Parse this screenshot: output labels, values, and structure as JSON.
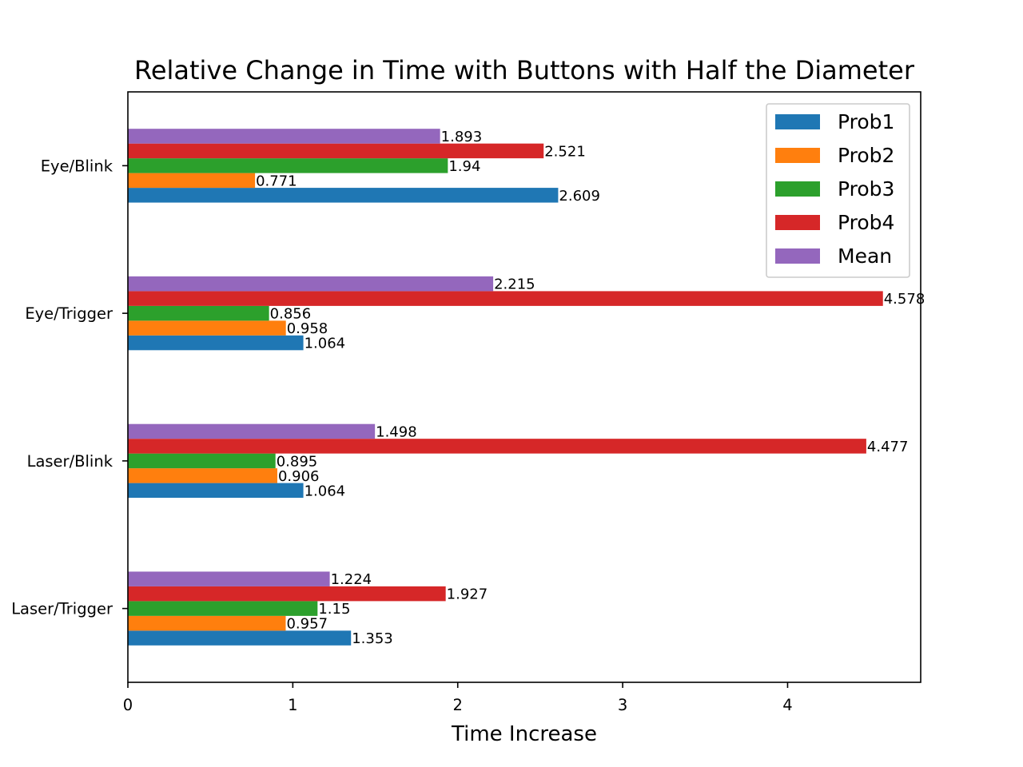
{
  "chart_data": {
    "type": "bar",
    "orientation": "horizontal",
    "title": "Relative Change in Time with Buttons with Half the Diameter",
    "xlabel": "Time Increase",
    "ylabel": "",
    "categories": [
      "Laser/Trigger",
      "Laser/Blink",
      "Eye/Trigger",
      "Eye/Blink"
    ],
    "series": [
      {
        "name": "Prob1",
        "color": "#1f77b4",
        "values": [
          1.353,
          1.064,
          1.064,
          2.609
        ]
      },
      {
        "name": "Prob2",
        "color": "#ff7f0e",
        "values": [
          0.957,
          0.906,
          0.958,
          0.771
        ]
      },
      {
        "name": "Prob3",
        "color": "#2ca02c",
        "values": [
          1.15,
          0.895,
          0.856,
          1.94
        ]
      },
      {
        "name": "Prob4",
        "color": "#d62728",
        "values": [
          1.927,
          4.477,
          4.578,
          2.521
        ]
      },
      {
        "name": "Mean",
        "color": "#9467bd",
        "values": [
          1.224,
          1.498,
          2.215,
          1.893
        ]
      }
    ],
    "xlim": [
      0,
      4.807
    ],
    "xticks": [
      0,
      1,
      2,
      3,
      4
    ],
    "grid": false,
    "legend_position": "top-right",
    "bar_value_labels": true
  }
}
